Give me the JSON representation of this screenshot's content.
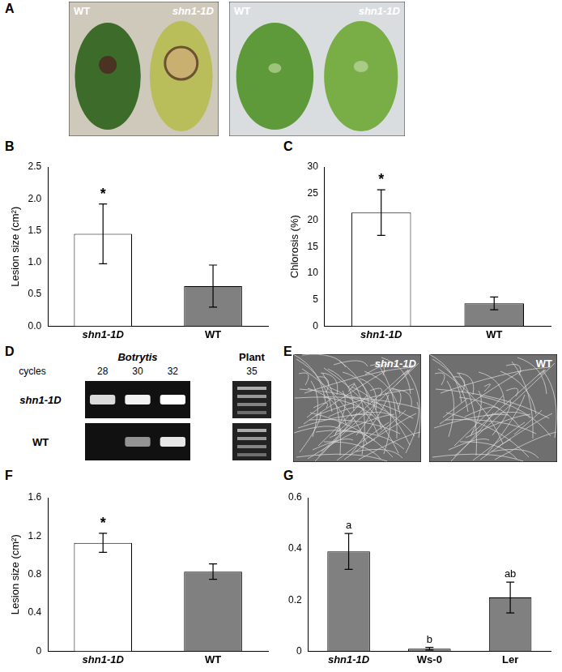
{
  "figure": {
    "A": {
      "label": "A",
      "photos": [
        {
          "left": "WT",
          "right": "shn1-1D"
        },
        {
          "left": "WT",
          "right": "shn1-1D"
        }
      ]
    },
    "D": {
      "label": "D",
      "row_header": "cycles",
      "groups": [
        {
          "name": "Botrytis",
          "lanes": [
            28,
            30,
            32
          ]
        },
        {
          "name": "Plant",
          "lanes": [
            35
          ]
        }
      ],
      "rows": [
        {
          "name": "shn1-1D",
          "bands": [
            0.85,
            0.95,
            1
          ]
        },
        {
          "name": "WT",
          "bands": [
            0,
            0.55,
            0.9
          ]
        }
      ]
    },
    "E": {
      "label": "E",
      "images": [
        "shn1-1D",
        "WT"
      ]
    }
  },
  "chart_data": [
    {
      "type": "bar",
      "title": "B",
      "categories": [
        "shn1-1D",
        "WT"
      ],
      "values": [
        1.45,
        0.63
      ],
      "errors": [
        0.47,
        0.33
      ],
      "colors": [
        "#ffffff",
        "#808080"
      ],
      "y_label": "Lesion size (cm²)",
      "ylim": [
        0,
        2.5
      ],
      "yticks": [
        {
          "value": 0,
          "label": "0.0"
        },
        0.5,
        {
          "value": 1,
          "label": "1.0"
        },
        1.5,
        {
          "value": 2,
          "label": "2.0"
        },
        2.5
      ],
      "annotations": [
        "*",
        null
      ],
      "grid": false
    },
    {
      "type": "bar",
      "title": "C",
      "categories": [
        "shn1-1D",
        "WT"
      ],
      "values": [
        21.4,
        4.3
      ],
      "errors": [
        4.3,
        1.2
      ],
      "colors": [
        "#ffffff",
        "#808080"
      ],
      "y_label": "Chlorosis (%)",
      "ylim": [
        0,
        30
      ],
      "yticks": [
        0,
        5,
        10,
        15,
        20,
        25,
        30
      ],
      "annotations": [
        "*",
        null
      ],
      "grid": false
    },
    {
      "type": "bar",
      "title": "F",
      "categories": [
        "shn1-1D",
        "WT"
      ],
      "values": [
        1.13,
        0.83
      ],
      "errors": [
        0.1,
        0.08
      ],
      "colors": [
        "#ffffff",
        "#808080"
      ],
      "y_label": "Lesion size (cm²)",
      "ylim": [
        0,
        1.6
      ],
      "yticks": [
        0,
        0.4,
        0.8,
        1.2,
        1.6
      ],
      "annotations": [
        "*",
        null
      ],
      "grid": false
    },
    {
      "type": "bar",
      "title": "G",
      "categories": [
        "shn1-1D",
        "Ws-0",
        "Ler"
      ],
      "values": [
        0.39,
        0.01,
        0.21
      ],
      "errors": [
        0.07,
        0.005,
        0.06
      ],
      "colors": [
        "#808080",
        "#808080",
        "#808080"
      ],
      "ylim": [
        0,
        0.6
      ],
      "yticks": [
        0,
        0.2,
        0.4,
        0.6
      ],
      "annotations": [
        "a",
        "b",
        "ab"
      ],
      "grid": false
    }
  ]
}
